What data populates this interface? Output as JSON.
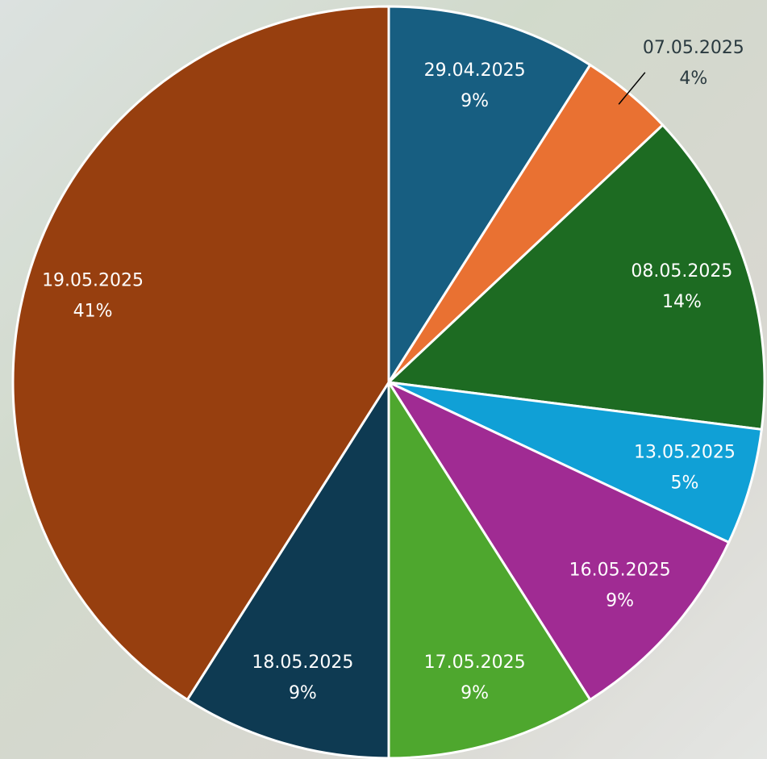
{
  "chart_data": {
    "type": "pie",
    "categories": [
      "29.04.2025",
      "07.05.2025",
      "08.05.2025",
      "13.05.2025",
      "16.05.2025",
      "17.05.2025",
      "18.05.2025",
      "19.05.2025"
    ],
    "values": [
      9,
      4,
      14,
      5,
      9,
      9,
      9,
      41
    ],
    "value_labels": [
      "9%",
      "4%",
      "14%",
      "5%",
      "9%",
      "9%",
      "9%",
      "41%"
    ],
    "colors": [
      "#175e81",
      "#e97132",
      "#1d6b22",
      "#10a0d6",
      "#a02b93",
      "#4ea72e",
      "#0e3a52",
      "#973f0f"
    ]
  }
}
